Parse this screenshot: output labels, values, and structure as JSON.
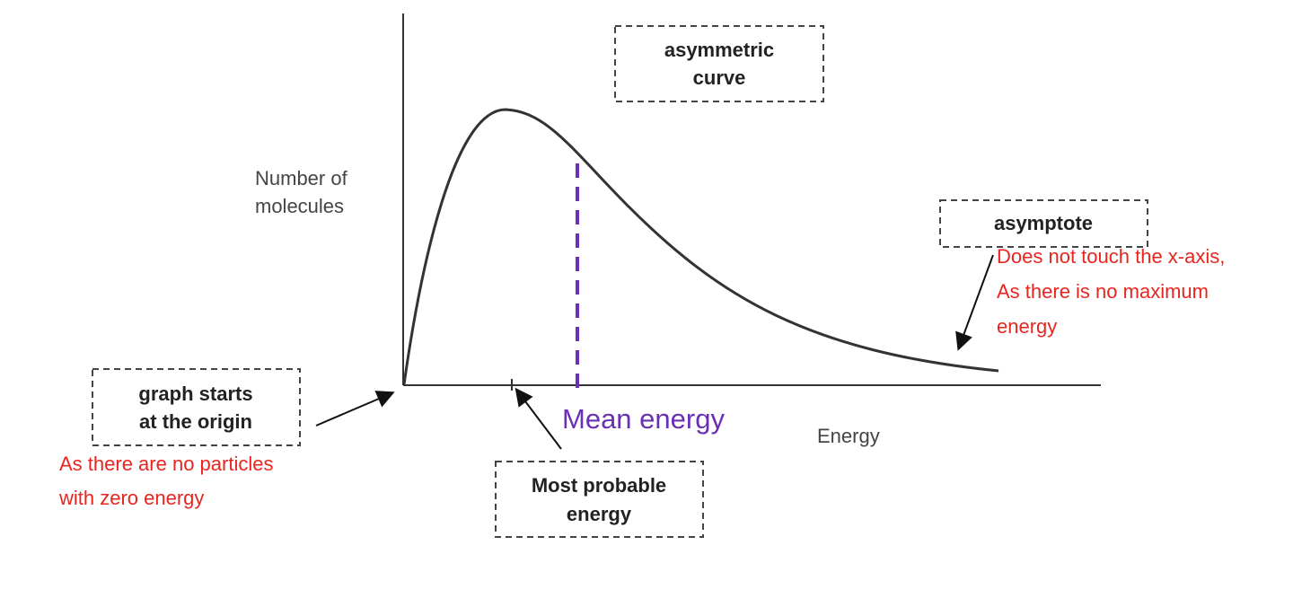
{
  "axes": {
    "y_label": [
      "Number of",
      "molecules"
    ],
    "x_label": "Energy"
  },
  "curve_label": "Mean energy",
  "boxes": {
    "asymmetric": [
      "asymmetric",
      "curve"
    ],
    "asymptote": [
      "asymptote"
    ],
    "origin": [
      "graph starts",
      "at the origin"
    ],
    "most_probable": [
      "Most probable",
      "energy"
    ]
  },
  "notes": {
    "asymptote": [
      "Does not touch the x-axis,",
      "As there is no maximum",
      "energy"
    ],
    "origin": [
      "As there are no particles",
      "with zero energy"
    ]
  }
}
